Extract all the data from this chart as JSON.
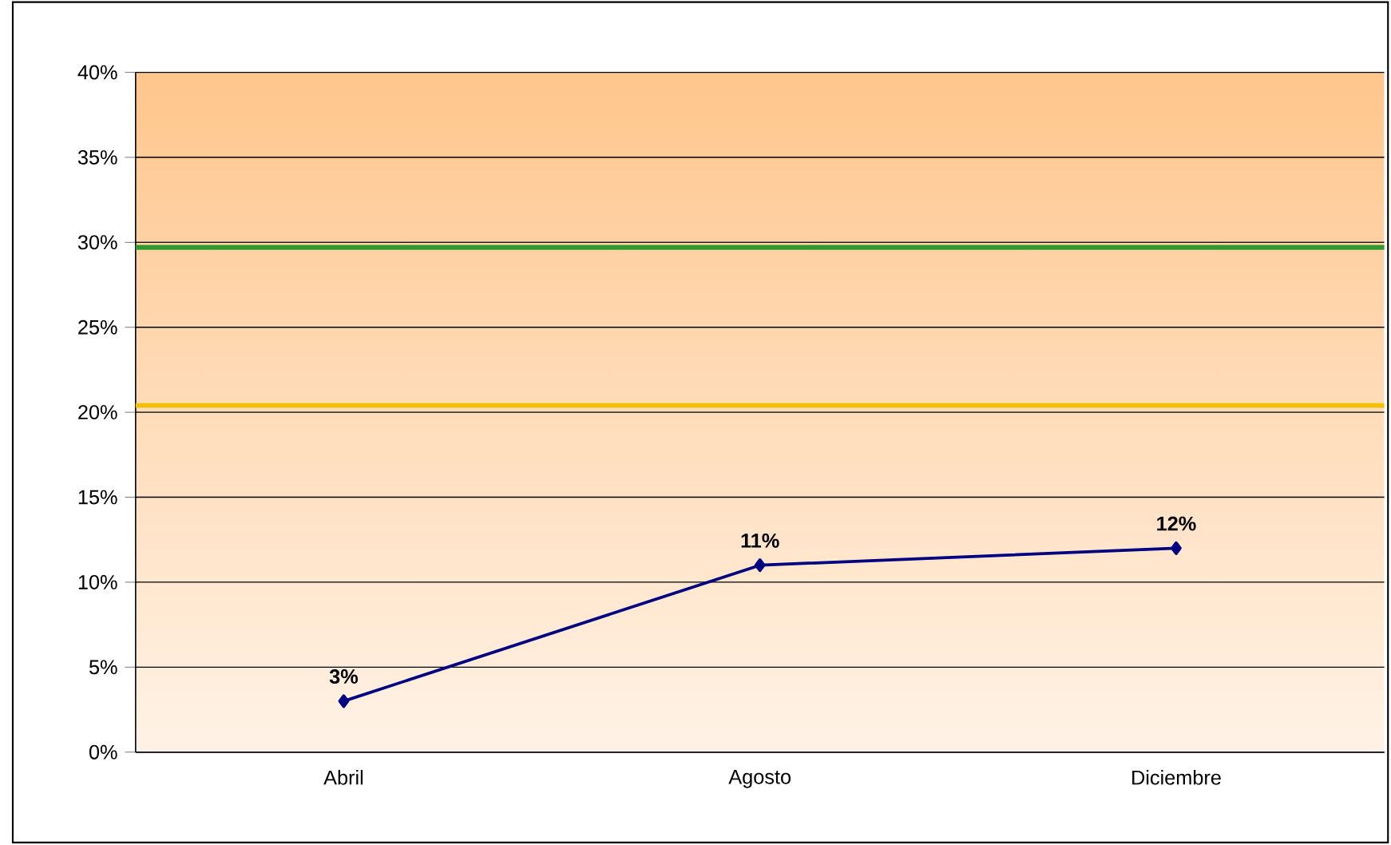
{
  "chart_data": {
    "type": "line",
    "categories": [
      "Abril",
      "Agosto",
      "Diciembre"
    ],
    "series": [
      {
        "color": "#000080",
        "values": [
          3,
          11,
          12
        ],
        "value_labels": [
          "3%",
          "11%",
          "12%"
        ]
      }
    ],
    "ylim": [
      0,
      40
    ],
    "yticks": [
      {
        "value": 0,
        "label": "0%"
      },
      {
        "value": 5,
        "label": "5%"
      },
      {
        "value": 10,
        "label": "10%"
      },
      {
        "value": 15,
        "label": "15%"
      },
      {
        "value": 20,
        "label": "20%"
      },
      {
        "value": 25,
        "label": "25%"
      },
      {
        "value": 30,
        "label": "30%"
      },
      {
        "value": 35,
        "label": "35%"
      },
      {
        "value": 40,
        "label": "40%"
      }
    ],
    "ref_lines": [
      {
        "axis": "y",
        "value": 29.7,
        "color": "#2e9a2e"
      },
      {
        "axis": "y",
        "value": 20.4,
        "color": "#f2c200"
      }
    ],
    "grid": "y",
    "marker": "diamond",
    "line_style": "solid"
  }
}
